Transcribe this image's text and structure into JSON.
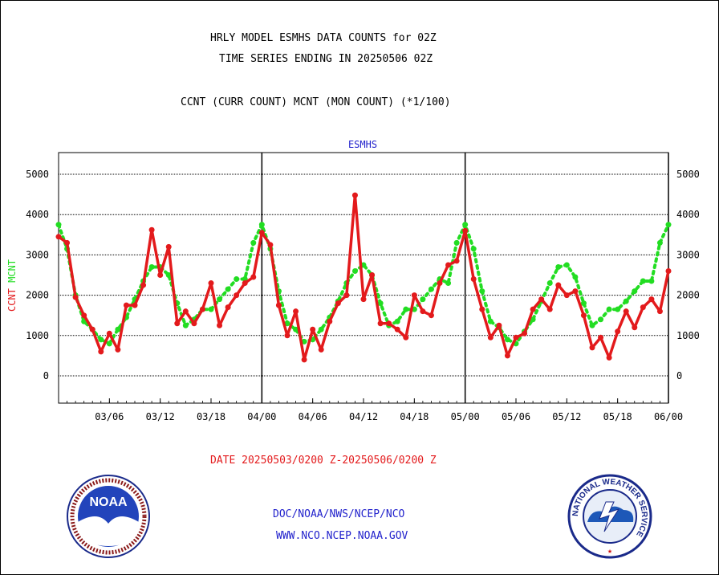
{
  "header": {
    "title_line1": "HRLY MODEL ESMHS DATA COUNTS for 02Z",
    "title_line2": "TIME SERIES ENDING IN 20250506 02Z",
    "subtitle": "CCNT (CURR COUNT) MCNT (MON COUNT) (*1/100)"
  },
  "footer": {
    "date_range": "DATE 20250503/0200 Z-20250506/0200 Z",
    "org_path": "DOC/NOAA/NWS/NCEP/NCO",
    "website": "WWW.NCO.NCEP.NOAA.GOV"
  },
  "logos": {
    "left": "NOAA",
    "right_ring": "NATIONAL WEATHER SERVICE"
  },
  "colors": {
    "ccnt": "#e31a1c",
    "mcnt": "#22dd22",
    "title_blue": "#2222cc"
  },
  "chart_data": {
    "type": "line",
    "title": "ESMHS",
    "ylabel_parts": [
      "CCNT",
      "MCNT"
    ],
    "ylim": [
      -600,
      5500
    ],
    "yticks": [
      0,
      1000,
      2000,
      3000,
      4000,
      5000
    ],
    "x_tick_labels": [
      "03/06",
      "03/12",
      "03/18",
      "04/00",
      "04/06",
      "04/12",
      "04/18",
      "05/00",
      "05/06",
      "05/12",
      "05/18",
      "06/00"
    ],
    "x_tick_hours": [
      6,
      12,
      18,
      24,
      30,
      36,
      42,
      48,
      54,
      60,
      66,
      72
    ],
    "day_boundaries_hours": [
      24,
      48,
      72
    ],
    "grid": true,
    "series": [
      {
        "name": "CCNT",
        "x_hours": [
          0,
          1,
          2,
          3,
          4,
          5,
          6,
          7,
          8,
          9,
          10,
          11,
          12,
          13,
          14,
          15,
          16,
          17,
          18,
          19,
          20,
          21,
          22,
          23,
          24,
          25,
          26,
          27,
          28,
          29,
          30,
          31,
          32,
          33,
          34,
          35,
          36,
          37,
          38,
          39,
          40,
          41,
          42,
          43,
          44,
          45,
          46,
          47,
          48,
          49,
          50,
          51,
          52,
          53,
          54,
          55,
          56,
          57,
          58,
          59,
          60,
          61,
          62,
          63,
          64,
          65,
          66,
          67,
          68,
          69,
          70,
          71,
          72
        ],
        "values": [
          3450,
          3300,
          1950,
          1500,
          1150,
          600,
          1050,
          650,
          1750,
          1750,
          2250,
          3620,
          2500,
          3200,
          1300,
          1600,
          1300,
          1650,
          2300,
          1250,
          1700,
          2000,
          2300,
          2450,
          3550,
          3250,
          1750,
          1000,
          1600,
          400,
          1150,
          650,
          1350,
          1800,
          2000,
          4480,
          1900,
          2500,
          1300,
          1300,
          1150,
          950,
          2000,
          1600,
          1500,
          2300,
          2750,
          2850,
          3600,
          2400,
          1650,
          950,
          1250,
          500,
          950,
          1050,
          1650,
          1900,
          1650,
          2250,
          2000,
          2100,
          1500,
          700,
          950,
          450,
          1100,
          1600,
          1200,
          1700,
          1900,
          1600,
          2600
        ]
      },
      {
        "name": "MCNT",
        "x_hours": [
          0,
          1,
          2,
          3,
          4,
          5,
          6,
          7,
          8,
          9,
          10,
          11,
          12,
          13,
          14,
          15,
          16,
          17,
          18,
          19,
          20,
          21,
          22,
          23,
          24,
          25,
          26,
          27,
          28,
          29,
          30,
          31,
          32,
          33,
          34,
          35,
          36,
          37,
          38,
          39,
          40,
          41,
          42,
          43,
          44,
          45,
          46,
          47,
          48,
          49,
          50,
          51,
          52,
          53,
          54,
          55,
          56,
          57,
          58,
          59,
          60,
          61,
          62,
          63,
          64,
          65,
          66,
          67,
          68,
          69,
          70,
          71,
          72
        ],
        "values": [
          3750,
          3150,
          2000,
          1350,
          1150,
          900,
          800,
          1150,
          1450,
          1900,
          2350,
          2700,
          2700,
          2500,
          1800,
          1250,
          1400,
          1650,
          1650,
          1900,
          2150,
          2400,
          2400,
          3300,
          3750,
          3150,
          2100,
          1300,
          1150,
          850,
          900,
          1150,
          1450,
          1850,
          2300,
          2600,
          2750,
          2500,
          1800,
          1250,
          1350,
          1650,
          1650,
          1900,
          2150,
          2400,
          2300,
          3300,
          3750,
          3150,
          2100,
          1350,
          1200,
          900,
          800,
          1100,
          1400,
          1850,
          2300,
          2700,
          2750,
          2450,
          1800,
          1250,
          1400,
          1650,
          1650,
          1850,
          2100,
          2350,
          2350,
          3300,
          3750
        ]
      }
    ]
  }
}
